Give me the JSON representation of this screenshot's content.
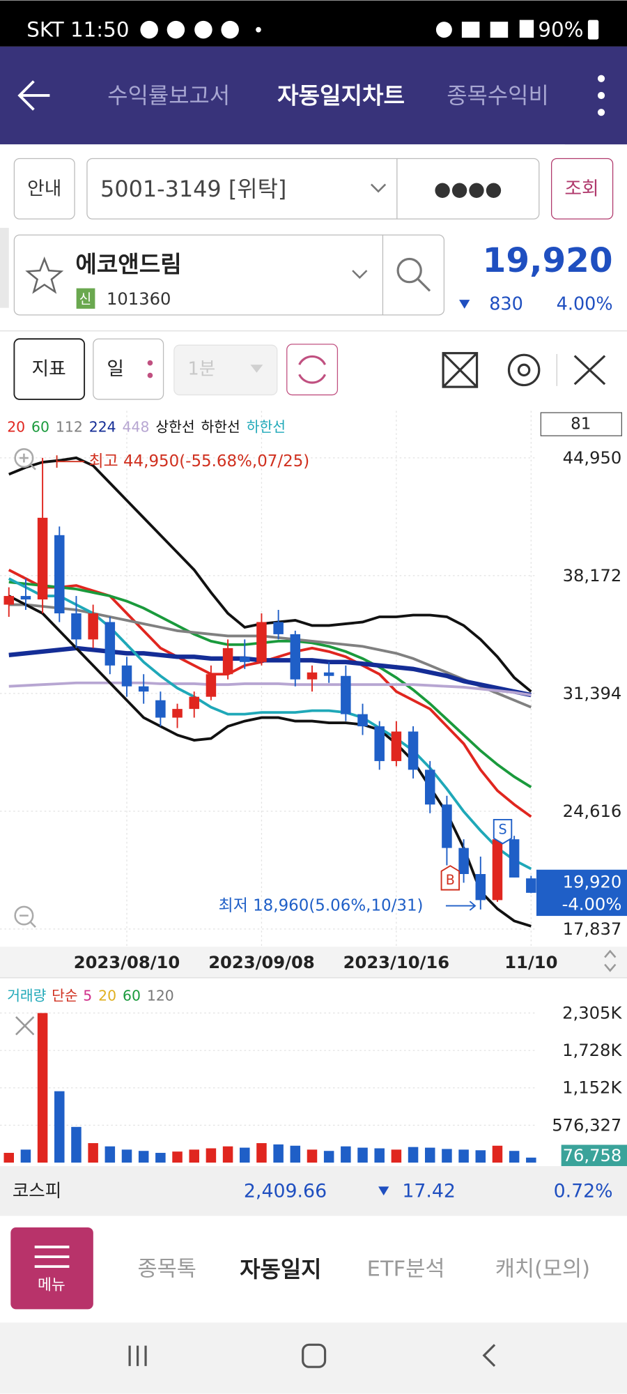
{
  "status_bar": {
    "carrier_time": "SKT 11:50",
    "battery": "90%"
  },
  "nav": {
    "tabs": [
      "수익률보고서",
      "자동일지차트",
      "종목수익비"
    ]
  },
  "account": {
    "guide_button": "안내",
    "account_number": "5001-3149 [위탁]",
    "password": "●●●●",
    "query_button": "조회"
  },
  "stock": {
    "name": "에코앤드림",
    "badge": "신",
    "code": "101360",
    "price": "19,920",
    "change": "830",
    "change_pct": "4.00%"
  },
  "toolbar": {
    "indicator": "지표",
    "period": "일",
    "minute": "1분"
  },
  "chart_data": [
    {
      "type": "candlestick",
      "counter": 81,
      "categories": [
        null,
        null,
        null,
        null,
        null,
        null,
        null,
        "2023/08/10",
        null,
        null,
        null,
        null,
        null,
        null,
        null,
        "2023/09/08",
        null,
        null,
        null,
        null,
        null,
        null,
        null,
        "2023/10/16",
        null,
        null,
        null,
        null,
        null,
        null,
        null,
        "11/10"
      ],
      "open": [
        36500,
        37000,
        36800,
        40500,
        36000,
        34500,
        35500,
        33000,
        31800,
        31000,
        30000,
        30500,
        31200,
        32500,
        33500,
        33200,
        35500,
        34800,
        32200,
        32600,
        32400,
        30200,
        29500,
        27500,
        29200,
        27000,
        25000,
        22500,
        21000,
        19500,
        23000,
        20750
      ],
      "high": [
        37500,
        38000,
        44950,
        41000,
        37000,
        36500,
        35800,
        33500,
        32500,
        31500,
        30800,
        31500,
        33000,
        34500,
        34500,
        36000,
        36200,
        35000,
        33000,
        33200,
        33000,
        30800,
        29800,
        29800,
        29500,
        27500,
        25500,
        23000,
        22000,
        23500,
        23200,
        20900
      ],
      "low": [
        35800,
        36200,
        36000,
        35500,
        34000,
        34000,
        32500,
        31200,
        30800,
        29500,
        29400,
        30000,
        31000,
        32200,
        32800,
        33000,
        34500,
        31800,
        31500,
        32000,
        29800,
        29000,
        27000,
        27200,
        26500,
        24500,
        21500,
        20500,
        18960,
        19400,
        20800,
        19900
      ],
      "close": [
        37000,
        36800,
        41500,
        36000,
        34500,
        36000,
        33000,
        31800,
        31500,
        30000,
        30500,
        31200,
        32500,
        34000,
        33200,
        35500,
        34800,
        32200,
        32600,
        32400,
        30200,
        29500,
        27500,
        29200,
        27000,
        25000,
        22500,
        21000,
        19500,
        23000,
        20800,
        19920
      ],
      "up_color": "#e0261f",
      "down_color": "#1f5fc7",
      "series": [
        {
          "name": "20",
          "color": "#e0261f",
          "values": [
            38500,
            38000,
            37500,
            37500,
            37600,
            37300,
            37000,
            36000,
            35000,
            34000,
            33500,
            33000,
            32500,
            32500,
            33000,
            33200,
            33500,
            33800,
            34000,
            33800,
            33500,
            33000,
            32500,
            31500,
            31000,
            30500,
            29500,
            28500,
            27000,
            25800,
            25000,
            24300
          ]
        },
        {
          "name": "60",
          "color": "#1a9a3c",
          "values": [
            37800,
            37700,
            37600,
            37500,
            37400,
            37200,
            37000,
            36700,
            36300,
            35800,
            35300,
            34800,
            34400,
            34200,
            34200,
            34300,
            34400,
            34400,
            34300,
            34100,
            33800,
            33400,
            32900,
            32300,
            31600,
            30800,
            29900,
            29000,
            28100,
            27300,
            26600,
            26000
          ]
        },
        {
          "name": "112",
          "color": "#808080",
          "values": [
            36500,
            36500,
            36400,
            36300,
            36200,
            36000,
            35800,
            35600,
            35400,
            35200,
            35000,
            34900,
            34800,
            34700,
            34700,
            34700,
            34600,
            34500,
            34400,
            34300,
            34200,
            34100,
            33900,
            33700,
            33400,
            33000,
            32600,
            32200,
            31800,
            31400,
            31000,
            30600
          ]
        },
        {
          "name": "224",
          "color": "#142d96",
          "values": [
            33600,
            33700,
            33800,
            33900,
            34000,
            33900,
            33800,
            33700,
            33700,
            33600,
            33500,
            33500,
            33400,
            33400,
            33400,
            33300,
            33300,
            33300,
            33300,
            33200,
            33200,
            33100,
            33000,
            32900,
            32800,
            32600,
            32400,
            32100,
            31900,
            31700,
            31500,
            31300
          ]
        },
        {
          "name": "448",
          "color": "#b7a6d2",
          "values": [
            31800,
            31850,
            31900,
            31950,
            32000,
            32000,
            32000,
            32000,
            32000,
            31950,
            31950,
            31950,
            31900,
            31900,
            31950,
            31950,
            31950,
            31900,
            31900,
            31900,
            31900,
            31900,
            31900,
            31900,
            31900,
            31850,
            31800,
            31750,
            31650,
            31550,
            31450,
            31300
          ]
        },
        {
          "name": "상한선",
          "color": "#111111",
          "values": [
            44000,
            44400,
            44700,
            44800,
            44950,
            44500,
            43500,
            42500,
            41500,
            40500,
            39500,
            38500,
            37200,
            36000,
            35200,
            35400,
            35500,
            35600,
            35300,
            35300,
            35400,
            35500,
            35800,
            35800,
            35900,
            35900,
            35800,
            35300,
            34500,
            33500,
            32300,
            31500
          ]
        },
        {
          "name": "하한선",
          "color": "#111111",
          "values": [
            37000,
            36500,
            36000,
            35000,
            34000,
            33000,
            32000,
            31000,
            30000,
            29500,
            29000,
            28700,
            28800,
            29500,
            29800,
            30000,
            30000,
            29800,
            29800,
            29700,
            29700,
            29600,
            29300,
            28500,
            27500,
            26000,
            24500,
            22500,
            20000,
            19000,
            18300,
            18000
          ]
        },
        {
          "name": "하한선",
          "color": "#1fa8b8",
          "values": [
            38000,
            37500,
            37000,
            37000,
            36500,
            36000,
            35200,
            34200,
            33200,
            32400,
            31700,
            31200,
            30600,
            30200,
            30200,
            30300,
            30300,
            30300,
            30400,
            30400,
            30300,
            30000,
            29400,
            28800,
            28100,
            27100,
            25900,
            24600,
            23500,
            22500,
            21800,
            21300
          ]
        }
      ],
      "ylim": [
        16820,
        47650
      ],
      "yticks": [
        {
          "value": 44950,
          "label": "44,950"
        },
        {
          "value": 38172,
          "label": "38,172"
        },
        {
          "value": 31394,
          "label": "31,394"
        },
        {
          "value": 24616,
          "label": "24,616"
        },
        {
          "value": 17837,
          "label": "17,837"
        }
      ],
      "annotations": {
        "high": "최고 44,950(-55.68%,07/25)",
        "low": "최저 18,960(5.06%,10/31)"
      },
      "signals": {
        "buy": "B",
        "sell": "S"
      },
      "last_price": {
        "value": 19920,
        "label": "19,920"
      },
      "last_change": "-4.00%"
    },
    {
      "type": "bar",
      "title": "거래량",
      "subtitle": "단순",
      "legend": [
        {
          "name": "5",
          "color": "#d0308a"
        },
        {
          "name": "20",
          "color": "#e0b020"
        },
        {
          "name": "60",
          "color": "#1a9a3c"
        },
        {
          "name": "120",
          "color": "#777777"
        }
      ],
      "values": [
        150000,
        200000,
        2305000,
        1100000,
        550000,
        300000,
        250000,
        200000,
        180000,
        150000,
        170000,
        200000,
        220000,
        250000,
        230000,
        300000,
        280000,
        260000,
        200000,
        180000,
        250000,
        230000,
        220000,
        200000,
        240000,
        230000,
        210000,
        200000,
        190000,
        260000,
        180000,
        76758
      ],
      "ylim": [
        0,
        2780000
      ],
      "yticks": [
        {
          "value": 2305000,
          "label": "2,305K"
        },
        {
          "value": 1728000,
          "label": "1,728K"
        },
        {
          "value": 1152000,
          "label": "1,152K"
        },
        {
          "value": 576327,
          "label": "576,327"
        }
      ],
      "last_value": {
        "value": 76758,
        "label": "76,758"
      }
    }
  ],
  "market": {
    "index_name": "코스피",
    "value": "2,409.66",
    "change": "17.42",
    "change_pct": "0.72%"
  },
  "bottom_nav": {
    "menu": "메뉴",
    "tabs": [
      "종목톡",
      "자동일지",
      "ETF분석",
      "캐치(모의)"
    ]
  }
}
